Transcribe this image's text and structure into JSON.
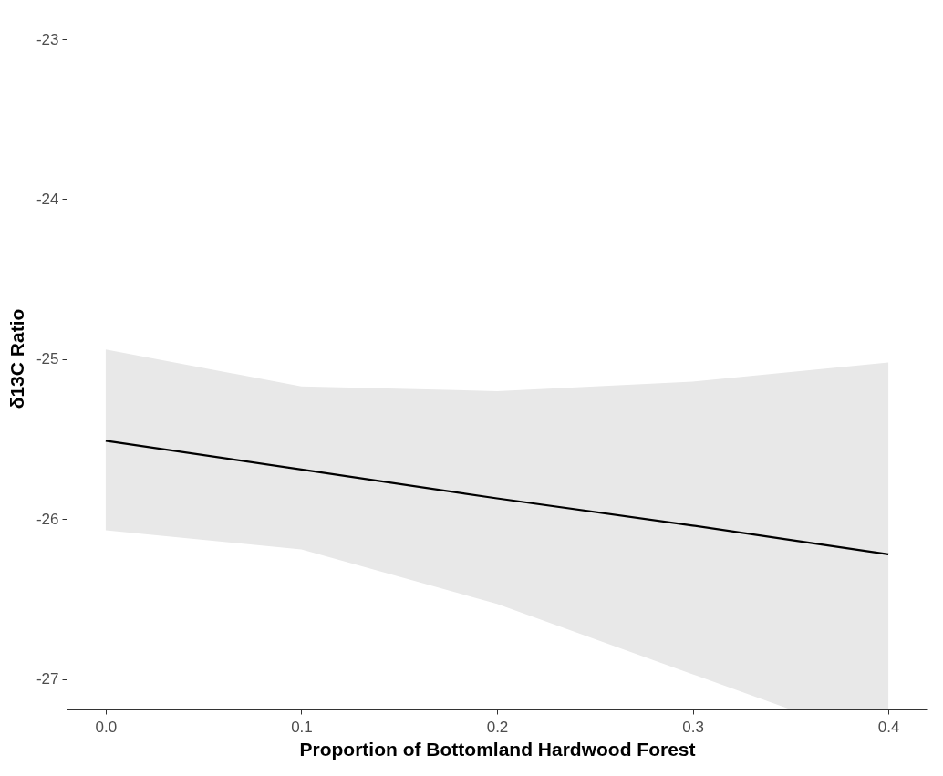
{
  "chart_data": {
    "type": "line",
    "xlabel": "Proportion of Bottomland Hardwood Forest",
    "ylabel": "δ13C Ratio",
    "xlim": [
      -0.02,
      0.42
    ],
    "xticks": [
      {
        "value": 0,
        "label": "0.0"
      },
      0.1,
      0.2,
      0.3,
      0.4
    ],
    "ylim": [
      -27.19,
      -22.8
    ],
    "yticks": [
      -27,
      -26,
      -25,
      -24,
      -23
    ],
    "grid": false,
    "marker": "none",
    "line_style": "solid",
    "series": [
      {
        "color": "#000000",
        "x": [
          0,
          0.1,
          0.2,
          0.3,
          0.35,
          0.4
        ],
        "values": [
          -25.51,
          -25.69,
          -25.87,
          -26.04,
          -26.13,
          -26.22
        ],
        "lower": [
          -26.07,
          -26.19,
          -26.53,
          -26.97,
          -27.19,
          -27.19
        ],
        "upper": [
          -24.94,
          -25.17,
          -25.2,
          -25.14,
          -25.08,
          -25.02
        ]
      }
    ]
  }
}
